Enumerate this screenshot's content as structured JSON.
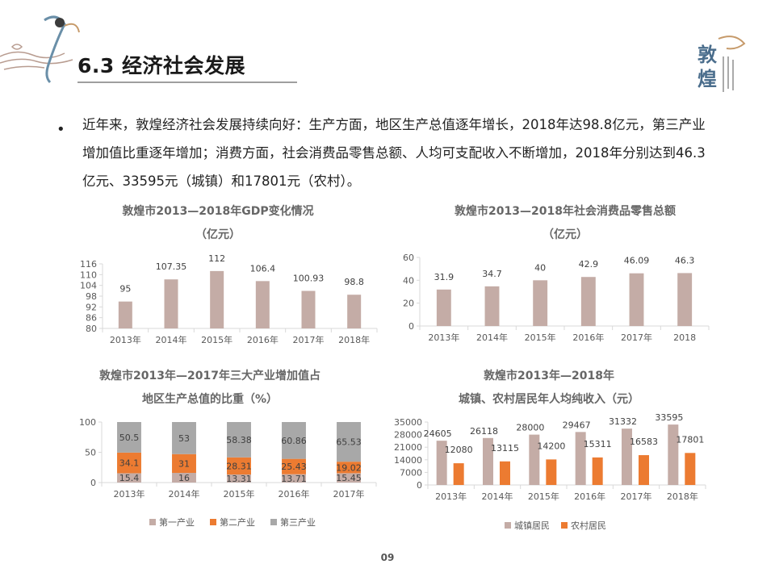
{
  "header": {
    "title": "6.3 经济社会发展",
    "logo_text": "敦煌"
  },
  "bullet": {
    "text": "近年来，敦煌经济社会发展持续向好：生产方面，地区生产总值逐年增长，2018年达98.8亿元，第三产业增加值比重逐年增加；消费方面，社会消费品零售总额、人均可支配收入不断增加，2018年分别达到46.3亿元、33595元（城镇）和17801元（农村）。"
  },
  "colors": {
    "primary_bar": "#c4aca6",
    "orange": "#ec7b31",
    "gray": "#a8a8a8",
    "axis": "#d9d9d9"
  },
  "page_number": "09",
  "chart_data": [
    {
      "type": "bar",
      "title": "敦煌市2013—2018年GDP变化情况",
      "subtitle": "（亿元）",
      "categories": [
        "2013年",
        "2014年",
        "2015年",
        "2016年",
        "2017年",
        "2018年"
      ],
      "values": [
        95,
        107.35,
        112,
        106.4,
        100.93,
        98.8
      ],
      "value_labels": [
        "95",
        "107.35",
        "112",
        "106.4",
        "100.93",
        "98.8"
      ],
      "ylim": [
        80,
        116
      ],
      "yticks": [
        "80",
        "86",
        "92",
        "98",
        "104",
        "110",
        "116"
      ]
    },
    {
      "type": "bar",
      "title": "敦煌市2013—2018年社会消费品零售总额",
      "subtitle": "（亿元）",
      "categories": [
        "2013年",
        "2014年",
        "2015年",
        "2016年",
        "2017年",
        "2018"
      ],
      "values": [
        31.9,
        34.7,
        40,
        42.9,
        46.09,
        46.3
      ],
      "value_labels": [
        "31.9",
        "34.7",
        "40",
        "42.9",
        "46.09",
        "46.3"
      ],
      "ylim": [
        0,
        60
      ],
      "yticks": [
        "0",
        "20",
        "40",
        "60"
      ]
    },
    {
      "type": "bar",
      "stacked": true,
      "title": "敦煌市2013年—2017年三大产业增加值占",
      "subtitle": "地区生产总值的比重（%）",
      "categories": [
        "2013年",
        "2014年",
        "2015年",
        "2016年",
        "2017年"
      ],
      "series": [
        {
          "name": "第一产业",
          "values": [
            15.4,
            16,
            13.31,
            13.71,
            15.45
          ],
          "labels": [
            "15.4",
            "16",
            "13.31",
            "13.71",
            "15.45"
          ]
        },
        {
          "name": "第二产业",
          "values": [
            34.1,
            31,
            28.31,
            25.43,
            19.02
          ],
          "labels": [
            "34.1",
            "31",
            "28.31",
            "25.43",
            "19.02"
          ]
        },
        {
          "name": "第三产业",
          "values": [
            50.5,
            53,
            58.38,
            60.86,
            65.53
          ],
          "labels": [
            "50.5",
            "53",
            "58.38",
            "60.86",
            "65.53"
          ]
        }
      ],
      "ylim": [
        0,
        100
      ],
      "yticks": [
        "0",
        "50",
        "100"
      ],
      "legend": "bottom"
    },
    {
      "type": "bar",
      "title": "敦煌市2013年—2018年",
      "subtitle": "城镇、农村居民年人均纯收入（元）",
      "categories": [
        "2013年",
        "2014年",
        "2015年",
        "2016年",
        "2017年",
        "2018年"
      ],
      "series": [
        {
          "name": "城镇居民",
          "values": [
            24605,
            26118,
            28000,
            29467,
            31332,
            33595
          ],
          "labels": [
            "24605",
            "26118",
            "28000",
            "29467",
            "31332",
            "33595"
          ]
        },
        {
          "name": "农村居民",
          "values": [
            12080,
            13115,
            14200,
            15311,
            16583,
            17801
          ],
          "labels": [
            "12080",
            "13115",
            "14200",
            "15311",
            "16583",
            "17801"
          ]
        }
      ],
      "ylim": [
        0,
        35000
      ],
      "yticks": [
        "0",
        "7000",
        "14000",
        "21000",
        "28000",
        "35000"
      ],
      "legend": "bottom"
    }
  ]
}
